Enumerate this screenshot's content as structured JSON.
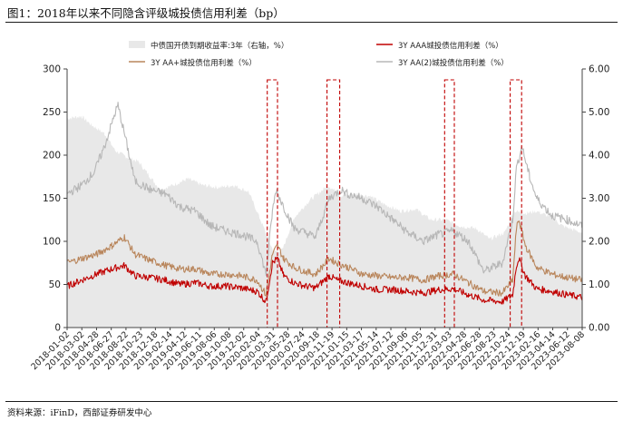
{
  "header": {
    "title": "图1：2018年以来不同隐含评级城投债信用利差（bp）"
  },
  "footer": {
    "source": "资料来源：iFinD，西部证券研发中心"
  },
  "chart_data": {
    "type": "line",
    "title": "图1：2018年以来不同隐含评级城投债信用利差（bp）",
    "xlabel": "",
    "ylabel": "",
    "ylim": [
      0,
      300
    ],
    "y2lim": [
      0,
      6
    ],
    "yticks": [
      "0",
      "50",
      "100",
      "150",
      "200",
      "250",
      "300"
    ],
    "y2ticks": [
      "0.00",
      "1.00",
      "2.00",
      "3.00",
      "4.00",
      "5.00",
      "6.00"
    ],
    "grid": false,
    "legend_position": "top",
    "x_ticks": [
      "2018-01-02",
      "2018-03-02",
      "2018-04-28",
      "2018-06-27",
      "2018-08-22",
      "2018-10-23",
      "2018-12-18",
      "2019-02-14",
      "2019-04-12",
      "2019-06-11",
      "2019-08-06",
      "2019-10-08",
      "2019-12-02",
      "2020-02-04",
      "2020-03-31",
      "2020-05-28",
      "2020-07-24",
      "2020-09-18",
      "2020-11-19",
      "2021-01-15",
      "2021-03-17",
      "2021-05-14",
      "2021-07-12",
      "2021-09-06",
      "2021-11-05",
      "2021-12-31",
      "2022-03-03",
      "2022-04-28",
      "2022-06-28",
      "2022-08-23",
      "2022-10-24",
      "2022-12-19",
      "2023-02-16",
      "2023-04-14",
      "2023-06-12",
      "2023-08-08"
    ],
    "x_range": [
      "2018-01-02",
      "2023-08-31"
    ],
    "series": [
      {
        "name": "中债国开债到期收益率:3年（右轴，%）",
        "axis": "right",
        "style": "area",
        "color": "#e8e8e8",
        "points": [
          [
            "2018-01-02",
            4.85
          ],
          [
            "2018-03-01",
            4.9
          ],
          [
            "2018-04-10",
            4.7
          ],
          [
            "2018-06-01",
            4.5
          ],
          [
            "2018-07-15",
            4.1
          ],
          [
            "2018-09-01",
            3.95
          ],
          [
            "2018-10-15",
            3.85
          ],
          [
            "2018-12-01",
            3.5
          ],
          [
            "2019-01-10",
            3.2
          ],
          [
            "2019-03-01",
            3.3
          ],
          [
            "2019-05-01",
            3.45
          ],
          [
            "2019-07-01",
            3.3
          ],
          [
            "2019-09-01",
            3.25
          ],
          [
            "2019-11-01",
            3.3
          ],
          [
            "2019-12-31",
            3.15
          ],
          [
            "2020-02-10",
            2.6
          ],
          [
            "2020-04-10",
            1.75
          ],
          [
            "2020-05-15",
            1.8
          ],
          [
            "2020-07-01",
            2.55
          ],
          [
            "2020-09-01",
            2.95
          ],
          [
            "2020-11-15",
            3.3
          ],
          [
            "2021-01-05",
            3.05
          ],
          [
            "2021-03-01",
            3.1
          ],
          [
            "2021-05-01",
            3.05
          ],
          [
            "2021-07-01",
            2.85
          ],
          [
            "2021-09-01",
            2.7
          ],
          [
            "2021-11-01",
            2.75
          ],
          [
            "2021-12-31",
            2.5
          ],
          [
            "2022-03-01",
            2.5
          ],
          [
            "2022-05-01",
            2.35
          ],
          [
            "2022-07-01",
            2.3
          ],
          [
            "2022-08-25",
            2.05
          ],
          [
            "2022-10-24",
            2.2
          ],
          [
            "2022-12-01",
            2.7
          ],
          [
            "2023-01-15",
            2.65
          ],
          [
            "2023-03-01",
            2.7
          ],
          [
            "2023-05-01",
            2.55
          ],
          [
            "2023-06-15",
            2.35
          ],
          [
            "2023-08-31",
            2.2
          ]
        ]
      },
      {
        "name": "3Y AAA城投债信用利差（%）",
        "axis": "left",
        "style": "line",
        "color": "#c00000",
        "points": [
          [
            "2018-01-02",
            48
          ],
          [
            "2018-03-01",
            55
          ],
          [
            "2018-05-01",
            62
          ],
          [
            "2018-07-01",
            68
          ],
          [
            "2018-08-20",
            72
          ],
          [
            "2018-10-01",
            60
          ],
          [
            "2018-12-01",
            58
          ],
          [
            "2019-02-01",
            55
          ],
          [
            "2019-04-01",
            50
          ],
          [
            "2019-06-01",
            52
          ],
          [
            "2019-08-01",
            48
          ],
          [
            "2019-10-01",
            48
          ],
          [
            "2019-12-01",
            46
          ],
          [
            "2020-02-04",
            42
          ],
          [
            "2020-03-10",
            30
          ],
          [
            "2020-04-05",
            75
          ],
          [
            "2020-04-25",
            80
          ],
          [
            "2020-05-20",
            60
          ],
          [
            "2020-07-01",
            52
          ],
          [
            "2020-08-15",
            48
          ],
          [
            "2020-09-25",
            46
          ],
          [
            "2020-11-19",
            60
          ],
          [
            "2020-12-20",
            55
          ],
          [
            "2021-02-01",
            52
          ],
          [
            "2021-04-01",
            48
          ],
          [
            "2021-06-01",
            44
          ],
          [
            "2021-08-01",
            44
          ],
          [
            "2021-10-01",
            42
          ],
          [
            "2021-12-01",
            40
          ],
          [
            "2022-02-01",
            44
          ],
          [
            "2022-04-01",
            45
          ],
          [
            "2022-06-01",
            38
          ],
          [
            "2022-08-01",
            32
          ],
          [
            "2022-10-15",
            30
          ],
          [
            "2022-11-25",
            38
          ],
          [
            "2022-12-10",
            72
          ],
          [
            "2022-12-20",
            80
          ],
          [
            "2023-01-15",
            60
          ],
          [
            "2023-03-01",
            45
          ],
          [
            "2023-05-01",
            42
          ],
          [
            "2023-07-01",
            38
          ],
          [
            "2023-08-31",
            35
          ]
        ]
      },
      {
        "name": "3Y AA+城投债信用利差（%）",
        "axis": "left",
        "style": "line",
        "color": "#b9865c",
        "points": [
          [
            "2018-01-02",
            75
          ],
          [
            "2018-03-01",
            80
          ],
          [
            "2018-05-01",
            85
          ],
          [
            "2018-07-01",
            95
          ],
          [
            "2018-08-20",
            105
          ],
          [
            "2018-10-01",
            85
          ],
          [
            "2018-12-01",
            78
          ],
          [
            "2019-02-01",
            72
          ],
          [
            "2019-04-01",
            68
          ],
          [
            "2019-06-01",
            68
          ],
          [
            "2019-08-01",
            62
          ],
          [
            "2019-10-01",
            62
          ],
          [
            "2019-12-01",
            60
          ],
          [
            "2020-02-04",
            55
          ],
          [
            "2020-03-10",
            38
          ],
          [
            "2020-04-05",
            85
          ],
          [
            "2020-04-25",
            95
          ],
          [
            "2020-05-20",
            80
          ],
          [
            "2020-07-01",
            70
          ],
          [
            "2020-08-15",
            65
          ],
          [
            "2020-09-25",
            62
          ],
          [
            "2020-11-19",
            80
          ],
          [
            "2020-12-20",
            75
          ],
          [
            "2021-02-01",
            70
          ],
          [
            "2021-04-01",
            62
          ],
          [
            "2021-06-01",
            60
          ],
          [
            "2021-08-01",
            58
          ],
          [
            "2021-10-01",
            58
          ],
          [
            "2021-12-01",
            55
          ],
          [
            "2022-02-01",
            60
          ],
          [
            "2022-04-01",
            62
          ],
          [
            "2022-06-01",
            52
          ],
          [
            "2022-08-01",
            42
          ],
          [
            "2022-10-15",
            40
          ],
          [
            "2022-11-25",
            55
          ],
          [
            "2022-12-10",
            115
          ],
          [
            "2022-12-20",
            125
          ],
          [
            "2023-01-15",
            95
          ],
          [
            "2023-03-01",
            70
          ],
          [
            "2023-05-01",
            62
          ],
          [
            "2023-07-01",
            58
          ],
          [
            "2023-08-31",
            55
          ]
        ]
      },
      {
        "name": "3Y AA(2)城投债信用利差（%）",
        "axis": "left",
        "style": "line",
        "color": "#b7b7b7",
        "points": [
          [
            "2018-01-02",
            155
          ],
          [
            "2018-03-01",
            165
          ],
          [
            "2018-04-20",
            180
          ],
          [
            "2018-06-01",
            210
          ],
          [
            "2018-07-15",
            250
          ],
          [
            "2018-07-25",
            258
          ],
          [
            "2018-08-20",
            225
          ],
          [
            "2018-10-01",
            170
          ],
          [
            "2018-12-01",
            160
          ],
          [
            "2019-02-01",
            155
          ],
          [
            "2019-04-01",
            140
          ],
          [
            "2019-06-01",
            135
          ],
          [
            "2019-08-01",
            118
          ],
          [
            "2019-10-01",
            112
          ],
          [
            "2019-12-01",
            108
          ],
          [
            "2020-02-04",
            100
          ],
          [
            "2020-03-10",
            62
          ],
          [
            "2020-04-05",
            135
          ],
          [
            "2020-04-20",
            160
          ],
          [
            "2020-05-20",
            140
          ],
          [
            "2020-07-01",
            115
          ],
          [
            "2020-08-15",
            110
          ],
          [
            "2020-09-25",
            105
          ],
          [
            "2020-11-19",
            150
          ],
          [
            "2021-01-05",
            160
          ],
          [
            "2021-02-01",
            155
          ],
          [
            "2021-04-01",
            150
          ],
          [
            "2021-06-01",
            140
          ],
          [
            "2021-08-01",
            125
          ],
          [
            "2021-10-01",
            110
          ],
          [
            "2021-12-01",
            100
          ],
          [
            "2022-02-01",
            108
          ],
          [
            "2022-04-01",
            112
          ],
          [
            "2022-06-01",
            100
          ],
          [
            "2022-08-01",
            65
          ],
          [
            "2022-10-15",
            75
          ],
          [
            "2022-11-25",
            125
          ],
          [
            "2022-12-10",
            185
          ],
          [
            "2023-01-01",
            210
          ],
          [
            "2023-02-01",
            175
          ],
          [
            "2023-03-01",
            150
          ],
          [
            "2023-05-01",
            130
          ],
          [
            "2023-07-01",
            125
          ],
          [
            "2023-08-31",
            118
          ]
        ]
      }
    ],
    "highlights": [
      {
        "from": "2020-03-15",
        "to": "2020-04-25",
        "style": "dashed-box",
        "color": "#c00000"
      },
      {
        "from": "2020-11-10",
        "to": "2020-12-31",
        "style": "dashed-box",
        "color": "#c00000"
      },
      {
        "from": "2022-02-25",
        "to": "2022-04-05",
        "style": "dashed-box",
        "color": "#c00000"
      },
      {
        "from": "2022-11-15",
        "to": "2022-12-31",
        "style": "dashed-box",
        "color": "#c00000"
      }
    ]
  }
}
